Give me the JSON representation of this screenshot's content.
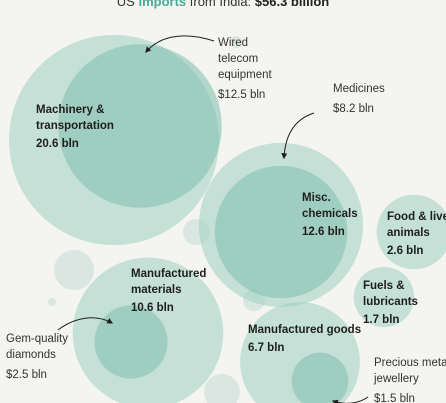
{
  "title": {
    "prefix": "US ",
    "highlight": "imports",
    "middle": " from India: ",
    "total": "$56.3 billion"
  },
  "colors": {
    "bubble": "#9fcfc1",
    "bubble_inner": "#7fbfae",
    "small_bubble": "#d9e6e1",
    "text": "#1e1e1e",
    "label_light": "#333333",
    "highlight": "#4aa896"
  },
  "chart_data": {
    "type": "bubble",
    "units": "billion USD",
    "categories": [
      {
        "name": "Machinery & transportation",
        "value": 20.6,
        "label_lines": [
          "Machinery &",
          "transportation"
        ],
        "value_label": "20.6 bln"
      },
      {
        "name": "Misc. chemicals",
        "value": 12.6,
        "label_lines": [
          "Misc.",
          "chemicals"
        ],
        "value_label": "12.6 bln"
      },
      {
        "name": "Manufactured materials",
        "value": 10.6,
        "label_lines": [
          "Manufactured",
          "materials"
        ],
        "value_label": "10.6 bln"
      },
      {
        "name": "Manufactured goods",
        "value": 6.7,
        "label_lines": [
          "Manufactured goods"
        ],
        "value_label": "6.7 bln"
      },
      {
        "name": "Food & live animals",
        "value": 2.6,
        "label_lines": [
          "Food & live",
          "animals"
        ],
        "value_label": "2.6 bln"
      },
      {
        "name": "Fuels & lubricants",
        "value": 1.7,
        "label_lines": [
          "Fuels &",
          "lubricants"
        ],
        "value_label": "1.7 bln"
      }
    ],
    "subcategories": [
      {
        "name": "Wired telecom equipment",
        "parent": "Machinery & transportation",
        "value": 12.5,
        "label_lines": [
          "Wired",
          "telecom",
          "equipment"
        ],
        "value_label": "$12.5 bln"
      },
      {
        "name": "Medicines",
        "parent": "Misc. chemicals",
        "value": 8.2,
        "label_lines": [
          "Medicines"
        ],
        "value_label": "$8.2 bln"
      },
      {
        "name": "Gem-quality diamonds",
        "parent": "Manufactured materials",
        "value": 2.5,
        "label_lines": [
          "Gem-quality",
          "diamonds"
        ],
        "value_label": "$2.5 bln"
      },
      {
        "name": "Precious metal jewellery",
        "parent": "Manufactured goods",
        "value": 1.5,
        "label_lines": [
          "Precious metal",
          "jewellery"
        ],
        "value_label": "$1.5 bln"
      }
    ]
  }
}
